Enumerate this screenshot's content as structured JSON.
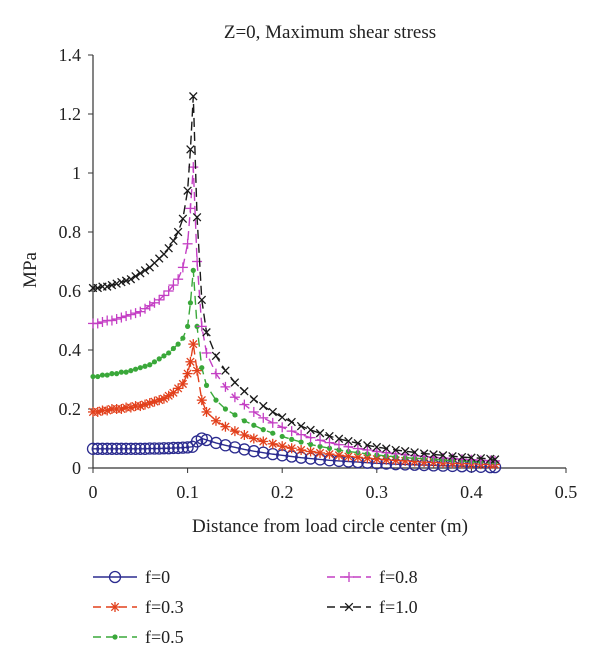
{
  "chart_data": {
    "type": "line",
    "title": "Z=0, Maximum shear stress",
    "xlabel": "Distance from load circle center (m)",
    "ylabel": "MPa",
    "xlim": [
      0,
      0.5
    ],
    "ylim": [
      0,
      1.4
    ],
    "xticks": [
      0,
      0.1,
      0.2,
      0.3,
      0.4,
      0.5
    ],
    "xtick_labels": [
      "0",
      "0.1",
      "0.2",
      "0.3",
      "0.4",
      "0.5"
    ],
    "yticks": [
      0,
      0.2,
      0.4,
      0.6,
      0.8,
      1.0,
      1.2,
      1.4
    ],
    "ytick_labels": [
      "0",
      "0.2",
      "0.4",
      "0.6",
      "0.8",
      "1",
      "1.2",
      "1.4"
    ],
    "grid": false,
    "legend_position": "bottom",
    "series": [
      {
        "name": "f=0",
        "color": "#2b2b8f",
        "marker": "circle",
        "dash": "solid",
        "x": [
          0,
          0.005,
          0.01,
          0.015,
          0.02,
          0.025,
          0.03,
          0.035,
          0.04,
          0.045,
          0.05,
          0.055,
          0.06,
          0.065,
          0.07,
          0.075,
          0.08,
          0.085,
          0.09,
          0.095,
          0.1,
          0.105,
          0.11,
          0.115,
          0.12,
          0.13,
          0.14,
          0.15,
          0.16,
          0.17,
          0.18,
          0.19,
          0.2,
          0.21,
          0.22,
          0.23,
          0.24,
          0.25,
          0.26,
          0.27,
          0.28,
          0.29,
          0.3,
          0.31,
          0.32,
          0.33,
          0.34,
          0.35,
          0.36,
          0.37,
          0.38,
          0.39,
          0.4,
          0.41,
          0.42,
          0.425
        ],
        "y": [
          0.065,
          0.065,
          0.065,
          0.065,
          0.065,
          0.065,
          0.065,
          0.065,
          0.065,
          0.065,
          0.065,
          0.065,
          0.066,
          0.066,
          0.066,
          0.067,
          0.067,
          0.068,
          0.068,
          0.069,
          0.07,
          0.072,
          0.09,
          0.1,
          0.095,
          0.085,
          0.077,
          0.07,
          0.063,
          0.057,
          0.052,
          0.047,
          0.043,
          0.039,
          0.035,
          0.032,
          0.029,
          0.026,
          0.024,
          0.022,
          0.02,
          0.018,
          0.016,
          0.015,
          0.013,
          0.012,
          0.011,
          0.01,
          0.009,
          0.008,
          0.007,
          0.006,
          0.005,
          0.004,
          0.003,
          0.003
        ]
      },
      {
        "name": "f=0.3",
        "color": "#e2401c",
        "marker": "asterisk",
        "dash": "dash",
        "x": [
          0,
          0.005,
          0.01,
          0.015,
          0.02,
          0.025,
          0.03,
          0.035,
          0.04,
          0.045,
          0.05,
          0.055,
          0.06,
          0.065,
          0.07,
          0.075,
          0.08,
          0.085,
          0.09,
          0.095,
          0.1,
          0.103,
          0.106,
          0.11,
          0.115,
          0.12,
          0.13,
          0.14,
          0.15,
          0.16,
          0.17,
          0.18,
          0.19,
          0.2,
          0.21,
          0.22,
          0.23,
          0.24,
          0.25,
          0.26,
          0.27,
          0.28,
          0.29,
          0.3,
          0.31,
          0.32,
          0.33,
          0.34,
          0.35,
          0.36,
          0.37,
          0.38,
          0.39,
          0.4,
          0.41,
          0.42,
          0.425
        ],
        "y": [
          0.19,
          0.19,
          0.195,
          0.195,
          0.2,
          0.2,
          0.2,
          0.205,
          0.205,
          0.21,
          0.21,
          0.215,
          0.22,
          0.225,
          0.23,
          0.235,
          0.245,
          0.255,
          0.27,
          0.285,
          0.32,
          0.36,
          0.42,
          0.33,
          0.23,
          0.19,
          0.16,
          0.14,
          0.125,
          0.112,
          0.1,
          0.09,
          0.082,
          0.074,
          0.067,
          0.061,
          0.056,
          0.051,
          0.047,
          0.043,
          0.039,
          0.036,
          0.033,
          0.03,
          0.028,
          0.026,
          0.024,
          0.022,
          0.02,
          0.019,
          0.017,
          0.016,
          0.015,
          0.014,
          0.013,
          0.012,
          0.012
        ]
      },
      {
        "name": "f=0.5",
        "color": "#3aa83a",
        "marker": "dot",
        "dash": "dash",
        "x": [
          0,
          0.005,
          0.01,
          0.015,
          0.02,
          0.025,
          0.03,
          0.035,
          0.04,
          0.045,
          0.05,
          0.055,
          0.06,
          0.065,
          0.07,
          0.075,
          0.08,
          0.085,
          0.09,
          0.095,
          0.1,
          0.103,
          0.106,
          0.11,
          0.115,
          0.12,
          0.13,
          0.14,
          0.15,
          0.16,
          0.17,
          0.18,
          0.19,
          0.2,
          0.21,
          0.22,
          0.23,
          0.24,
          0.25,
          0.26,
          0.27,
          0.28,
          0.29,
          0.3,
          0.31,
          0.32,
          0.33,
          0.34,
          0.35,
          0.36,
          0.37,
          0.38,
          0.39,
          0.4,
          0.41,
          0.42,
          0.425
        ],
        "y": [
          0.31,
          0.31,
          0.315,
          0.315,
          0.32,
          0.32,
          0.325,
          0.325,
          0.33,
          0.335,
          0.34,
          0.345,
          0.35,
          0.36,
          0.37,
          0.38,
          0.39,
          0.405,
          0.42,
          0.44,
          0.48,
          0.56,
          0.67,
          0.48,
          0.34,
          0.28,
          0.23,
          0.2,
          0.18,
          0.16,
          0.145,
          0.13,
          0.118,
          0.107,
          0.097,
          0.088,
          0.08,
          0.073,
          0.067,
          0.061,
          0.056,
          0.052,
          0.048,
          0.044,
          0.041,
          0.038,
          0.035,
          0.033,
          0.031,
          0.029,
          0.027,
          0.025,
          0.024,
          0.022,
          0.021,
          0.02,
          0.019
        ]
      },
      {
        "name": "f=0.8",
        "color": "#c43fc4",
        "marker": "plus",
        "dash": "dash",
        "x": [
          0,
          0.005,
          0.01,
          0.015,
          0.02,
          0.025,
          0.03,
          0.035,
          0.04,
          0.045,
          0.05,
          0.055,
          0.06,
          0.065,
          0.07,
          0.075,
          0.08,
          0.085,
          0.09,
          0.095,
          0.1,
          0.103,
          0.106,
          0.11,
          0.115,
          0.12,
          0.13,
          0.14,
          0.15,
          0.16,
          0.17,
          0.18,
          0.19,
          0.2,
          0.21,
          0.22,
          0.23,
          0.24,
          0.25,
          0.26,
          0.27,
          0.28,
          0.29,
          0.3,
          0.31,
          0.32,
          0.33,
          0.34,
          0.35,
          0.36,
          0.37,
          0.38,
          0.39,
          0.4,
          0.41,
          0.42,
          0.425
        ],
        "y": [
          0.49,
          0.49,
          0.495,
          0.5,
          0.5,
          0.505,
          0.51,
          0.515,
          0.52,
          0.525,
          0.53,
          0.54,
          0.55,
          0.56,
          0.57,
          0.585,
          0.6,
          0.62,
          0.64,
          0.68,
          0.76,
          0.88,
          1.02,
          0.7,
          0.48,
          0.39,
          0.32,
          0.275,
          0.24,
          0.215,
          0.19,
          0.17,
          0.153,
          0.138,
          0.125,
          0.113,
          0.103,
          0.094,
          0.086,
          0.079,
          0.072,
          0.066,
          0.061,
          0.056,
          0.052,
          0.048,
          0.045,
          0.042,
          0.039,
          0.036,
          0.034,
          0.032,
          0.03,
          0.028,
          0.026,
          0.025,
          0.024
        ]
      },
      {
        "name": "f=1.0",
        "color": "#1a1a1a",
        "marker": "x",
        "dash": "dash",
        "x": [
          0,
          0.005,
          0.01,
          0.015,
          0.02,
          0.025,
          0.03,
          0.035,
          0.04,
          0.045,
          0.05,
          0.055,
          0.06,
          0.065,
          0.07,
          0.075,
          0.08,
          0.085,
          0.09,
          0.095,
          0.1,
          0.103,
          0.106,
          0.11,
          0.115,
          0.12,
          0.13,
          0.14,
          0.15,
          0.16,
          0.17,
          0.18,
          0.19,
          0.2,
          0.21,
          0.22,
          0.23,
          0.24,
          0.25,
          0.26,
          0.27,
          0.28,
          0.29,
          0.3,
          0.31,
          0.32,
          0.33,
          0.34,
          0.35,
          0.36,
          0.37,
          0.38,
          0.39,
          0.4,
          0.41,
          0.42,
          0.425
        ],
        "y": [
          0.61,
          0.61,
          0.615,
          0.615,
          0.62,
          0.625,
          0.63,
          0.635,
          0.64,
          0.65,
          0.66,
          0.67,
          0.68,
          0.695,
          0.71,
          0.725,
          0.745,
          0.77,
          0.8,
          0.845,
          0.94,
          1.08,
          1.26,
          0.85,
          0.57,
          0.46,
          0.38,
          0.33,
          0.29,
          0.26,
          0.233,
          0.21,
          0.19,
          0.172,
          0.156,
          0.142,
          0.129,
          0.118,
          0.108,
          0.099,
          0.091,
          0.084,
          0.077,
          0.071,
          0.066,
          0.061,
          0.057,
          0.053,
          0.049,
          0.046,
          0.043,
          0.04,
          0.037,
          0.035,
          0.033,
          0.031,
          0.029
        ]
      }
    ]
  }
}
